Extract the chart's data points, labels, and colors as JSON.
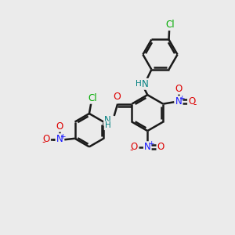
{
  "bg_color": "#ebebeb",
  "bond_color": "#1a1a1a",
  "bond_width": 1.8,
  "dbo": 0.08,
  "colors": {
    "N": "#1414ff",
    "N_H": "#008080",
    "O": "#dd0000",
    "Cl": "#00aa00",
    "H": "#008080"
  },
  "fs": 8.5,
  "fs_charge": 6.5,
  "figsize": [
    3.0,
    3.0
  ],
  "dpi": 100
}
